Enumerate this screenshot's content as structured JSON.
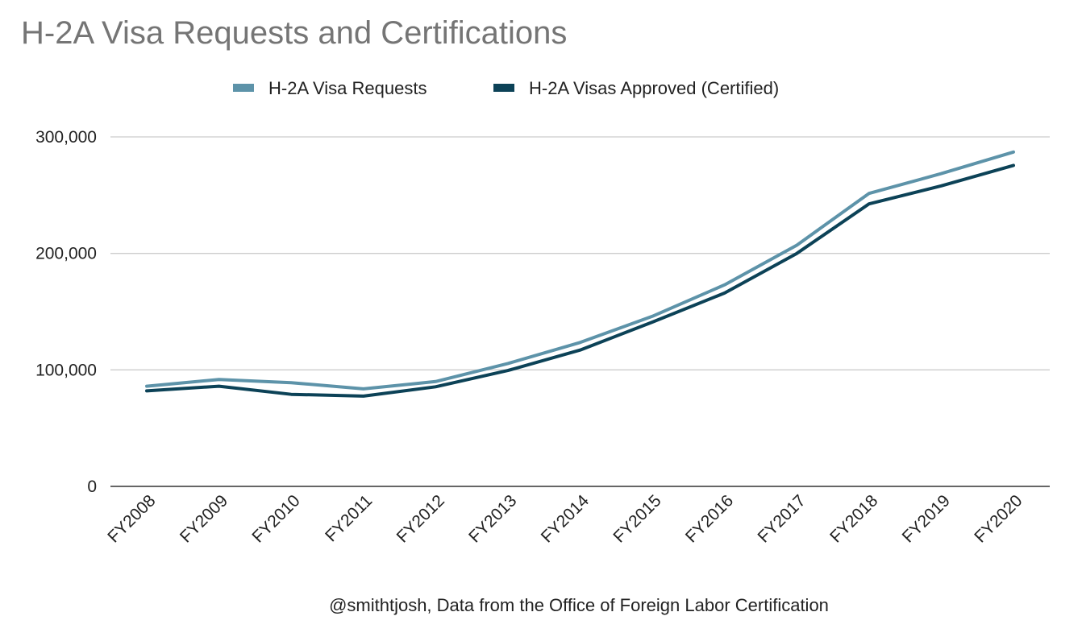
{
  "chart_data": {
    "type": "line",
    "title": "H-2A Visa Requests and Certifications",
    "caption": "@smithtjosh, Data from the Office of Foreign Labor Certification",
    "legend_position": "top-center",
    "grid": true,
    "ylim": [
      0,
      300000
    ],
    "y_ticks": [
      "0",
      "100,000",
      "200,000",
      "300,000"
    ],
    "y_tick_values": [
      0,
      100000,
      200000,
      300000
    ],
    "categories": [
      "FY2008",
      "FY2009",
      "FY2010",
      "FY2011",
      "FY2012",
      "FY2013",
      "FY2014",
      "FY2015",
      "FY2016",
      "FY2017",
      "FY2018",
      "FY2019",
      "FY2020"
    ],
    "series": [
      {
        "name": "H-2A Visa Requests",
        "color": "#5d93a9",
        "values": [
          86000,
          91800,
          89000,
          83700,
          90000,
          105500,
          123500,
          146000,
          173000,
          207000,
          251500,
          268500,
          287000
        ]
      },
      {
        "name": "H-2A Visas Approved (Certified)",
        "color": "#0c4257",
        "values": [
          82000,
          86000,
          79000,
          77500,
          85500,
          99500,
          117000,
          141000,
          166000,
          200000,
          242500,
          258000,
          275500
        ]
      }
    ]
  }
}
